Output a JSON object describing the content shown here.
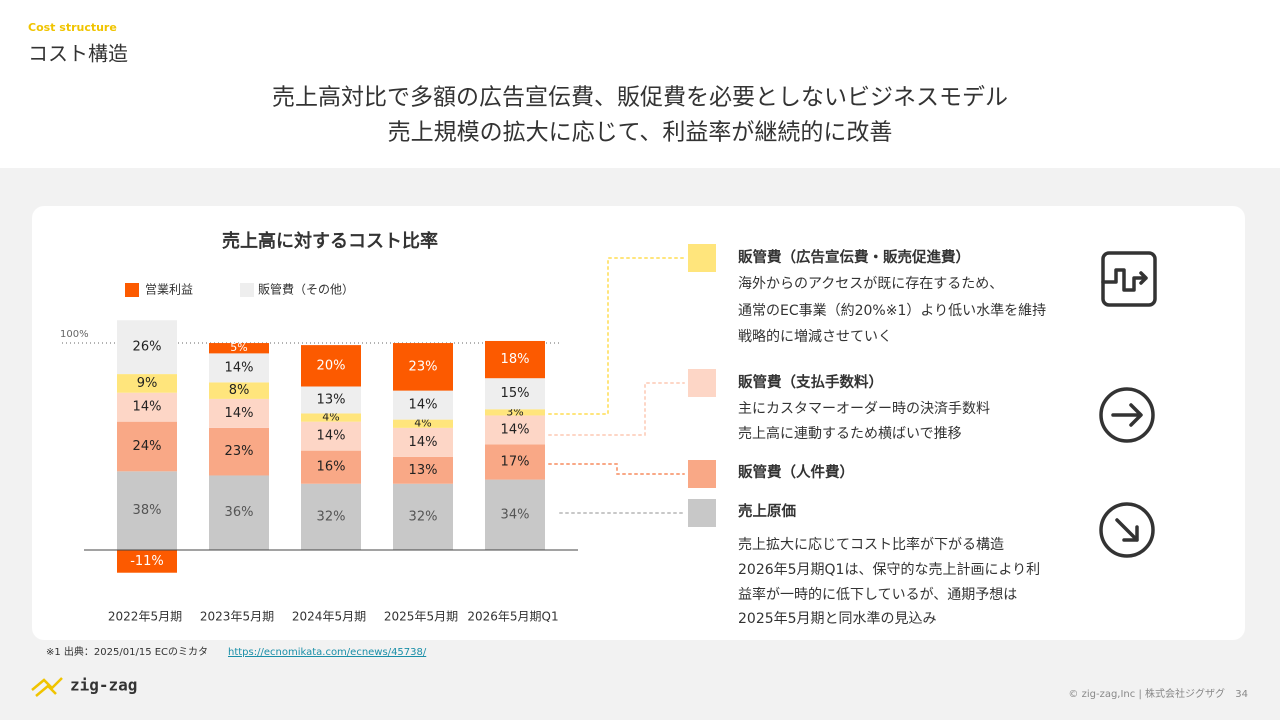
{
  "header": {
    "kicker": "Cost structure",
    "title": "コスト構造"
  },
  "headline": [
    "売上高対比で多額の広告宣伝費、販促費を必要としないビジネスモデル",
    "売上規模の拡大に応じて、利益率が継続的に改善"
  ],
  "chart_data": {
    "type": "stacked_bar",
    "title": "売上高に対するコスト比率",
    "categories": [
      "2022年5月期",
      "2023年5月期",
      "2024年5月期",
      "2025年5月期",
      "2026年5月期Q1"
    ],
    "series": [
      {
        "name": "売上原価",
        "color": "#c8c8c8",
        "values": [
          38,
          36,
          32,
          32,
          34
        ],
        "value_labels": [
          "38%",
          "36%",
          "32%",
          "32%",
          "34%"
        ]
      },
      {
        "name": "販管費（人件費）",
        "color": "#f9a886",
        "values": [
          24,
          23,
          16,
          13,
          17
        ],
        "value_labels": [
          "24%",
          "23%",
          "16%",
          "13%",
          "17%"
        ]
      },
      {
        "name": "販管費（支払手数料）",
        "color": "#fdd6c6",
        "values": [
          14,
          14,
          14,
          14,
          14
        ],
        "value_labels": [
          "14%",
          "14%",
          "14%",
          "14%",
          "14%"
        ]
      },
      {
        "name": "販管費（広告宣伝費・販売促進費）",
        "color": "#ffe57c",
        "values": [
          9,
          8,
          4,
          4,
          3
        ],
        "value_labels": [
          "9%",
          "8%",
          "4%",
          "4%",
          "3%"
        ]
      },
      {
        "name": "販管費（その他）",
        "color": "#eeeeee",
        "values": [
          26,
          14,
          13,
          14,
          15
        ],
        "value_labels": [
          "26%",
          "14%",
          "13%",
          "14%",
          "15%"
        ]
      },
      {
        "name": "営業利益",
        "color": "#fc5a00",
        "values": [
          -11,
          5,
          20,
          23,
          18
        ],
        "value_labels": [
          "-11%",
          "5%",
          "20%",
          "23%",
          "18%"
        ]
      }
    ],
    "ylim": [
      -15,
      115
    ],
    "reference_line": {
      "value": 100,
      "label": "100%"
    }
  },
  "descriptions": {
    "ad": [
      "海外からのアクセスが既に存在するため、",
      "通常のEC事業（約20%※1）より低い水準を維持",
      "戦略的に増減させていく"
    ],
    "fee": [
      "主にカスタマーオーダー時の決済手数料",
      "売上高に連動するため横ばいで推移"
    ],
    "summary": [
      "売上拡大に応じてコスト比率が下がる構造",
      "2026年5月期Q1は、保守的な売上計画により利",
      "益率が一時的に低下しているが、通期予想は",
      "2025年5月期と同水準の見込み"
    ]
  },
  "footnote": {
    "text": "※1 出典：2025/01/15 ECのミカタ",
    "link": "https://ecnomikata.com/ecnews/45738/"
  },
  "footer": {
    "logo": "zig-zag",
    "copyright": "© zig-zag,Inc | 株式会社ジグザグ",
    "page": "34"
  }
}
